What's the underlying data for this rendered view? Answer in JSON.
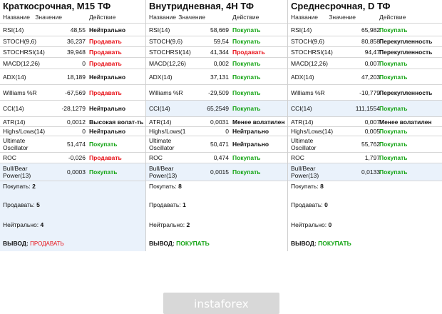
{
  "headers": {
    "name": "Название",
    "value": "Значение",
    "action": "Действие"
  },
  "panels": [
    {
      "title": "Краткосрочная, M15 ТФ",
      "rows": [
        {
          "name": "RSI(14)",
          "value": "48,55",
          "action": "Нейтрально",
          "kind": "neutral"
        },
        {
          "name": "STOCH(9,6)",
          "value": "36,237",
          "action": "Продавать",
          "kind": "sell"
        },
        {
          "name": "STOCHRSI(14)",
          "value": "39,948",
          "action": "Продавать",
          "kind": "sell"
        },
        {
          "name": "MACD(12,26)",
          "value": "0",
          "action": "Продавать",
          "kind": "sell"
        },
        {
          "name": "ADX(14)",
          "value": "18,189",
          "action": "Нейтрально",
          "kind": "neutral"
        },
        {
          "name": "Williams %R",
          "value": "-67,569",
          "action": "Продавать",
          "kind": "sell"
        },
        {
          "name": "CCI(14)",
          "value": "-28,1279",
          "action": "Нейтрально",
          "kind": "neutral"
        },
        {
          "name": "ATR(14)",
          "value": "0,0012",
          "action": "Высокая волат-ть",
          "kind": "highvol"
        },
        {
          "name": "Highs/Lows(14)",
          "value": "0",
          "action": "Нейтрально",
          "kind": "neutral"
        },
        {
          "name": "Ultimate\nOscillator",
          "value": "51,474",
          "action": "Покупать",
          "kind": "buy"
        },
        {
          "name": "ROC",
          "value": "-0,026",
          "action": "Продавать",
          "kind": "sell"
        },
        {
          "name": "Bull/Bear\nPower(13)",
          "value": "0,0003",
          "action": "Покупать",
          "kind": "buy"
        }
      ],
      "summary": {
        "buy_label": "Покупать:",
        "buy_count": "2",
        "sell_label": "Продавать:",
        "sell_count": "5",
        "neutral_label": "Нейтрально:",
        "neutral_count": "4",
        "verdict_label": "ВЫВОД:",
        "verdict": "ПРОДАВАТЬ",
        "verdict_kind": "sell"
      }
    },
    {
      "title": "Внутридневная, 4H ТФ",
      "rows": [
        {
          "name": "RSI(14)",
          "value": "58,669",
          "action": "Покупать",
          "kind": "buy"
        },
        {
          "name": "STOCH(9,6)",
          "value": "59,54",
          "action": "Покупать",
          "kind": "buy"
        },
        {
          "name": "STOCHRSI(14)",
          "value": "41,344",
          "action": "Продавать",
          "kind": "sell"
        },
        {
          "name": "MACD(12,26)",
          "value": "0,002",
          "action": "Покупать",
          "kind": "buy"
        },
        {
          "name": "ADX(14)",
          "value": "37,131",
          "action": "Покупать",
          "kind": "buy"
        },
        {
          "name": "Williams %R",
          "value": "-29,509",
          "action": "Покупать",
          "kind": "buy"
        },
        {
          "name": "CCI(14)",
          "value": "65,2549",
          "action": "Покупать",
          "kind": "buy"
        },
        {
          "name": "ATR(14)",
          "value": "0,0031",
          "action": "Менее волатилен",
          "kind": "lowvol"
        },
        {
          "name": "Highs/Lows(1",
          "value": "0",
          "action": "Нейтрально",
          "kind": "neutral"
        },
        {
          "name": "Ultimate\nOscillator",
          "value": "50,471",
          "action": "Нейтрально",
          "kind": "neutral"
        },
        {
          "name": "ROC",
          "value": "0,474",
          "action": "Покупать",
          "kind": "buy"
        },
        {
          "name": "Bull/Bear\nPower(13)",
          "value": "0,0015",
          "action": "Покупать",
          "kind": "buy"
        }
      ],
      "summary": {
        "buy_label": "Покупать:",
        "buy_count": "8",
        "sell_label": "Продавать:",
        "sell_count": "1",
        "neutral_label": "Нейтрально:",
        "neutral_count": "2",
        "verdict_label": "ВЫВОД:",
        "verdict": "ПОКУПАТЬ",
        "verdict_kind": "buy"
      }
    },
    {
      "title": "Среднесрочная, D ТФ",
      "rows": [
        {
          "name": "RSI(14)",
          "value": "65,982",
          "action": "Покупать",
          "kind": "buy"
        },
        {
          "name": "STOCH(9,6)",
          "value": "80,858",
          "action": "Перекупленность",
          "kind": "overbought"
        },
        {
          "name": "STOCHRSI(14)",
          "value": "94,47",
          "action": "Перекупленность",
          "kind": "overbought"
        },
        {
          "name": "MACD(12,26)",
          "value": "0,007",
          "action": "Покупать",
          "kind": "buy"
        },
        {
          "name": "ADX(14)",
          "value": "47,203",
          "action": "Покупать",
          "kind": "buy"
        },
        {
          "name": "Williams %R",
          "value": "-10,779",
          "action": "Перекупленность",
          "kind": "overbought"
        },
        {
          "name": "CCI(14)",
          "value": "111,1554",
          "action": "Покупать",
          "kind": "buy"
        },
        {
          "name": "ATR(14)",
          "value": "0,007",
          "action": "Менее волатилен",
          "kind": "lowvol"
        },
        {
          "name": "Highs/Lows(14)",
          "value": "0,005",
          "action": "Покупать",
          "kind": "buy"
        },
        {
          "name": "Ultimate\nOscillator",
          "value": "55,762",
          "action": "Покупать",
          "kind": "buy"
        },
        {
          "name": "ROC",
          "value": "1,797",
          "action": "Покупать",
          "kind": "buy"
        },
        {
          "name": "Bull/Bear\nPower(13)",
          "value": "0,0133",
          "action": "Покупать",
          "kind": "buy"
        }
      ],
      "summary": {
        "buy_label": "Покупать:",
        "buy_count": "8",
        "sell_label": "Продавать:",
        "sell_count": "0",
        "neutral_label": "Нейтрально:",
        "neutral_count": "0",
        "verdict_label": "ВЫВОД:",
        "verdict": "ПОКУПАТЬ",
        "verdict_kind": "buy"
      }
    }
  ],
  "logo": {
    "text": "instaforex"
  },
  "colors": {
    "sell": "#e8131a",
    "buy": "#17a517",
    "highlight": "#eaf2fb"
  }
}
